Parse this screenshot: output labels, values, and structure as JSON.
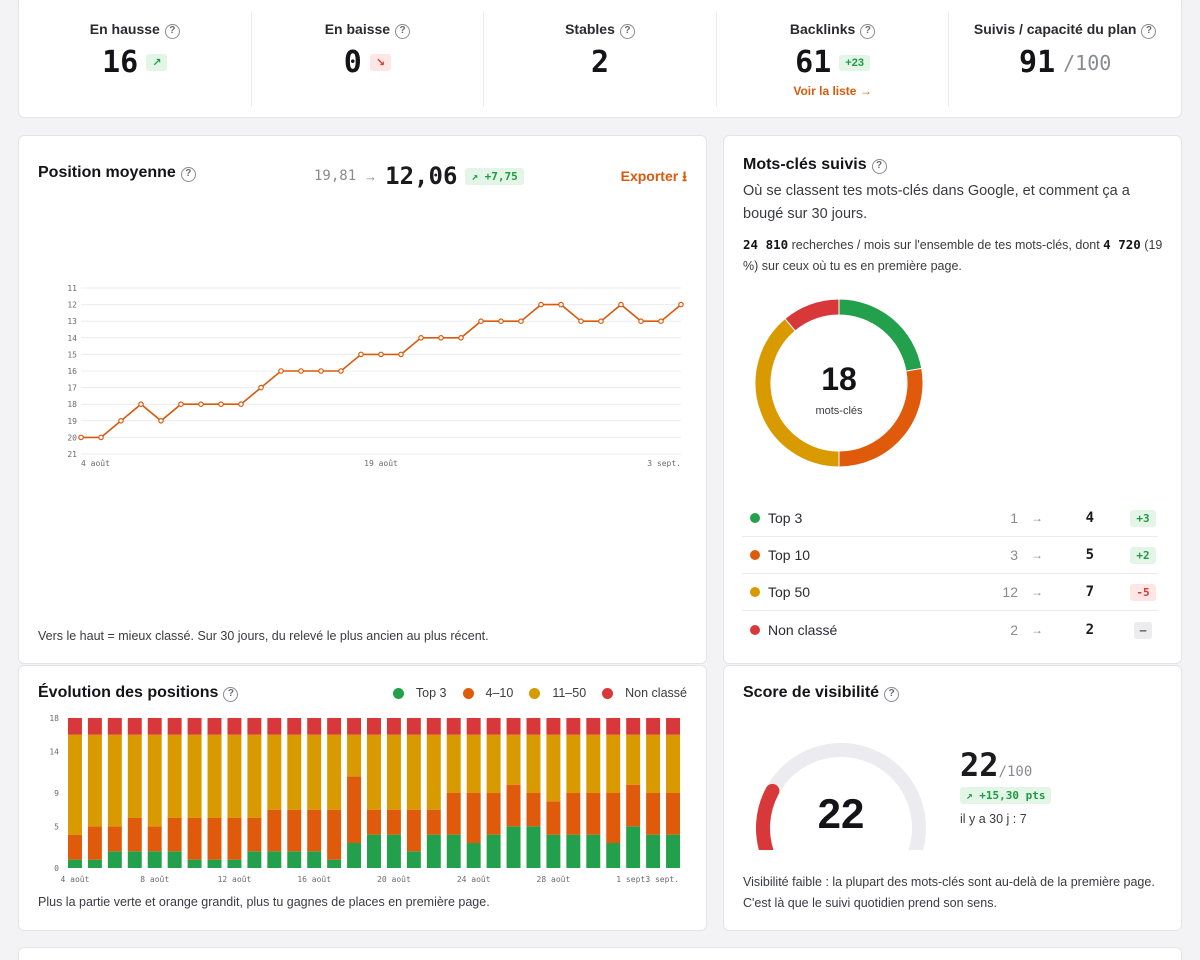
{
  "kpis": [
    {
      "label": "En hausse",
      "value": "16",
      "chip": "↗",
      "chip_tone": "green"
    },
    {
      "label": "En baisse",
      "value": "0",
      "chip": "↘",
      "chip_tone": "red"
    },
    {
      "label": "Stables",
      "value": "2"
    },
    {
      "label": "Backlinks",
      "value": "61",
      "chip": "+23",
      "chip_tone": "green",
      "link": "Voir la liste →"
    },
    {
      "label": "Suivis / capacité du plan",
      "value": "91",
      "total": "/100"
    }
  ],
  "position": {
    "title": "Position moyenne",
    "old": "19,81",
    "arrow": "→",
    "new": "12,06",
    "delta": "↗ +7,75",
    "export": "Exporter ⭳",
    "caption": "Vers le haut = mieux classé. Sur 30 jours, du relevé le plus ancien au plus récent."
  },
  "keywords": {
    "title": "Mots-clés suivis",
    "desc": "Où se classent tes mots-clés dans Google, et comment ça a bougé sur 30 jours.",
    "stats_a": "24 810",
    "stats_b": " recherches / mois sur l'ensemble de tes mots-clés, dont ",
    "stats_c": "4 720",
    "stats_d": " (19 %) sur ceux où tu es en première page.",
    "total": "18",
    "total_label": "mots-clés",
    "rows": [
      {
        "name": "Top 3",
        "color": "#22a04b",
        "old": "1",
        "new": "4",
        "delta": "+3",
        "tone": "green"
      },
      {
        "name": "Top 10",
        "color": "#e05a0c",
        "old": "3",
        "new": "5",
        "delta": "+2",
        "tone": "green"
      },
      {
        "name": "Top 50",
        "color": "#d99a00",
        "old": "12",
        "new": "7",
        "delta": "-5",
        "tone": "red"
      },
      {
        "name": "Non classé",
        "color": "#d9383a",
        "old": "2",
        "new": "2",
        "delta": "–",
        "tone": "gray"
      }
    ]
  },
  "evolution": {
    "title": "Évolution des positions",
    "legend": [
      {
        "label": "Top 3",
        "color": "#22a04b"
      },
      {
        "label": "4–10",
        "color": "#e05a0c"
      },
      {
        "label": "11–50",
        "color": "#d99a00"
      },
      {
        "label": "Non classé",
        "color": "#d9383a"
      }
    ],
    "caption": "Plus la partie verte et orange grandit, plus tu gagnes de places en première page."
  },
  "visibility": {
    "title": "Score de visibilité",
    "gauge_value": "22",
    "score": "22",
    "max": "/100",
    "delta": "↗ +15,30 pts",
    "prev": "il y a 30 j : 7",
    "caption": "Visibilité faible : la plupart des mots-clés sont au-delà de la première page. C'est là que le suivi quotidien prend son sens."
  },
  "chart_data": [
    {
      "type": "line",
      "x": [
        "4 août",
        "5 août",
        "6 août",
        "7 août",
        "8 août",
        "9 août",
        "10 août",
        "11 août",
        "12 août",
        "13 août",
        "14 août",
        "15 août",
        "16 août",
        "17 août",
        "18 août",
        "19 août",
        "20 août",
        "21 août",
        "22 août",
        "23 août",
        "24 août",
        "25 août",
        "26 août",
        "27 août",
        "28 août",
        "29 août",
        "30 août",
        "31 août",
        "1 sept.",
        "2 sept.",
        "3 sept."
      ],
      "xticks": [
        "4 août",
        "19 août",
        "3 sept."
      ],
      "values": [
        20,
        20,
        19,
        18,
        19,
        18,
        18,
        18,
        18,
        17,
        16,
        16,
        16,
        16,
        15,
        15,
        15,
        14,
        14,
        14,
        13,
        13,
        13,
        12,
        12,
        13,
        13,
        12,
        13,
        13,
        12
      ],
      "yticks": [
        11,
        12,
        13,
        14,
        15,
        16,
        17,
        18,
        19,
        20,
        21
      ],
      "ylim": [
        21,
        11
      ],
      "color": "#d85a0c"
    },
    {
      "type": "bar",
      "stacked": true,
      "categories": [
        "4 août",
        "5 août",
        "6 août",
        "7 août",
        "8 août",
        "9 août",
        "10 août",
        "11 août",
        "12 août",
        "13 août",
        "14 août",
        "15 août",
        "16 août",
        "17 août",
        "18 août",
        "19 août",
        "20 août",
        "21 août",
        "22 août",
        "23 août",
        "24 août",
        "25 août",
        "26 août",
        "27 août",
        "28 août",
        "29 août",
        "30 août",
        "31 août",
        "1 sept.",
        "2 sept.",
        "3 sept."
      ],
      "xticks": [
        "4 août",
        "8 août",
        "12 août",
        "16 août",
        "20 août",
        "24 août",
        "28 août",
        "1 sept.",
        "3 sept."
      ],
      "yticks": [
        0,
        5,
        9,
        14,
        18
      ],
      "ylim": [
        0,
        18
      ],
      "series": [
        {
          "name": "Top 3",
          "color": "#22a04b",
          "values": [
            1,
            1,
            2,
            2,
            2,
            2,
            1,
            1,
            1,
            2,
            2,
            2,
            2,
            1,
            3,
            4,
            4,
            2,
            4,
            4,
            3,
            4,
            5,
            5,
            4,
            4,
            4,
            3,
            5,
            4,
            4
          ]
        },
        {
          "name": "4–10",
          "color": "#e05a0c",
          "values": [
            3,
            4,
            3,
            4,
            3,
            4,
            5,
            5,
            5,
            4,
            5,
            5,
            5,
            6,
            8,
            3,
            3,
            5,
            3,
            5,
            6,
            5,
            5,
            4,
            4,
            5,
            5,
            6,
            5,
            5,
            5
          ]
        },
        {
          "name": "11–50",
          "color": "#d99a00",
          "values": [
            12,
            11,
            11,
            10,
            11,
            10,
            10,
            10,
            10,
            10,
            9,
            9,
            9,
            9,
            5,
            9,
            9,
            9,
            9,
            7,
            7,
            7,
            6,
            7,
            8,
            7,
            7,
            7,
            6,
            7,
            7
          ]
        },
        {
          "name": "Non classé",
          "color": "#d9383a",
          "values": [
            2,
            2,
            2,
            2,
            2,
            2,
            2,
            2,
            2,
            2,
            2,
            2,
            2,
            2,
            2,
            2,
            2,
            2,
            2,
            2,
            2,
            2,
            2,
            2,
            2,
            2,
            2,
            2,
            2,
            2,
            2
          ]
        }
      ]
    },
    {
      "type": "pie",
      "categories": [
        "Top 3",
        "Top 10",
        "Top 50",
        "Non classé"
      ],
      "values": [
        4,
        5,
        7,
        2
      ]
    }
  ]
}
